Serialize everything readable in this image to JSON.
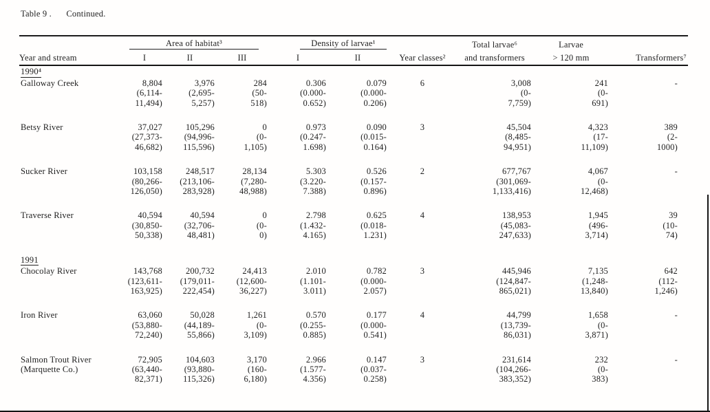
{
  "title": {
    "label": "Table 9 .",
    "continued": "Continued."
  },
  "table": {
    "headers": {
      "year_and_stream": "Year and stream",
      "area_group": "Area of habitat³",
      "area_sub_1": "I",
      "area_sub_2": "II",
      "area_sub_3": "III",
      "density_group": "Density of larvae¹",
      "density_sub_1": "I",
      "density_sub_2": "II",
      "year_classes": "Year classes²",
      "total_larvae_line1": "Total larvae⁶",
      "total_larvae_line2": "and transformers",
      "larvae_line1": "Larvae",
      "larvae_line2": "> 120 mm",
      "transformers": "Transformers⁷"
    },
    "sections": [
      {
        "year_label": "1990⁴",
        "rows": [
          {
            "stream": [
              "Galloway Creek"
            ],
            "values": [
              [
                "8,804",
                "(6,114-",
                "11,494)"
              ],
              [
                "3,976",
                "(2,695-",
                "5,257)"
              ],
              [
                "284",
                "(50-",
                "518)"
              ],
              [
                "0.306",
                "(0.000-",
                "0.652)"
              ],
              [
                "0.079",
                "(0.000-",
                "0.206)"
              ],
              [
                "6"
              ],
              [
                "3,008",
                "(0-",
                "7,759)"
              ],
              [
                "241",
                "(0-",
                "691)"
              ],
              [
                "-"
              ]
            ]
          },
          {
            "stream": [
              "Betsy River"
            ],
            "values": [
              [
                "37,027",
                "(27,373-",
                "46,682)"
              ],
              [
                "105,296",
                "(94,996-",
                "115,596)"
              ],
              [
                "0",
                "(0-",
                "1,105)"
              ],
              [
                "0.973",
                "(0.247-",
                "1.698)"
              ],
              [
                "0.090",
                "(0.015-",
                "0.164)"
              ],
              [
                "3"
              ],
              [
                "45,504",
                "(8,485-",
                "94,951)"
              ],
              [
                "4,323",
                "(17-",
                "11,109)"
              ],
              [
                "389",
                "(2-",
                "1000)"
              ]
            ]
          },
          {
            "stream": [
              "Sucker River"
            ],
            "values": [
              [
                "103,158",
                "(80,266-",
                "126,050)"
              ],
              [
                "248,517",
                "(213,106-",
                "283,928)"
              ],
              [
                "28,134",
                "(7,280-",
                "48,988)"
              ],
              [
                "5.303",
                "(3.220-",
                "7.388)"
              ],
              [
                "0.526",
                "(0.157-",
                "0.896)"
              ],
              [
                "2"
              ],
              [
                "677,767",
                "(301,069-",
                "1,133,416)"
              ],
              [
                "4,067",
                "(0-",
                "12,468)"
              ],
              [
                "-"
              ]
            ]
          },
          {
            "stream": [
              "Traverse River"
            ],
            "values": [
              [
                "40,594",
                "(30,850-",
                "50,338)"
              ],
              [
                "40,594",
                "(32,706-",
                "48,481)"
              ],
              [
                "0",
                "(0-",
                "0)"
              ],
              [
                "2.798",
                "(1.432-",
                "4.165)"
              ],
              [
                "0.625",
                "(0.018-",
                "1.231)"
              ],
              [
                "4"
              ],
              [
                "138,953",
                "(45,083-",
                "247,633)"
              ],
              [
                "1,945",
                "(496-",
                "3,714)"
              ],
              [
                "39",
                "(10-",
                "74)"
              ]
            ]
          }
        ]
      },
      {
        "year_label": "1991",
        "rows": [
          {
            "stream": [
              "Chocolay River"
            ],
            "values": [
              [
                "143,768",
                "(123,611-",
                "163,925)"
              ],
              [
                "200,732",
                "(179,011-",
                "222,454)"
              ],
              [
                "24,413",
                "(12,600-",
                "36,227)"
              ],
              [
                "2.010",
                "(1.101-",
                "3.011)"
              ],
              [
                "0.782",
                "(0.000-",
                "2.057)"
              ],
              [
                "3"
              ],
              [
                "445,946",
                "(124,847-",
                "865,021)"
              ],
              [
                "7,135",
                "(1,248-",
                "13,840)"
              ],
              [
                "642",
                "(112-",
                "1,246)"
              ]
            ]
          },
          {
            "stream": [
              "Iron River"
            ],
            "values": [
              [
                "63,060",
                "(53,880-",
                "72,240)"
              ],
              [
                "50,028",
                "(44,189-",
                "55,866)"
              ],
              [
                "1,261",
                "(0-",
                "3,109)"
              ],
              [
                "0.570",
                "(0.255-",
                "0.885)"
              ],
              [
                "0.177",
                "(0.000-",
                "0.541)"
              ],
              [
                "4"
              ],
              [
                "44,799",
                "(13,739-",
                "86,031)"
              ],
              [
                "1,658",
                "(0-",
                "3,871)"
              ],
              [
                "-"
              ]
            ]
          },
          {
            "stream": [
              "Salmon Trout River",
              "(Marquette Co.)"
            ],
            "values": [
              [
                "72,905",
                "(63,440-",
                "82,371)"
              ],
              [
                "104,603",
                "(93,880-",
                "115,326)"
              ],
              [
                "3,170",
                "(160-",
                "6,180)"
              ],
              [
                "2.966",
                "(1.577-",
                "4.356)"
              ],
              [
                "0.147",
                "(0.037-",
                "0.258)"
              ],
              [
                "3"
              ],
              [
                "231,614",
                "(104,266-",
                "383,352)"
              ],
              [
                "232",
                "(0-",
                "383)"
              ],
              [
                "-"
              ]
            ]
          }
        ]
      }
    ]
  }
}
